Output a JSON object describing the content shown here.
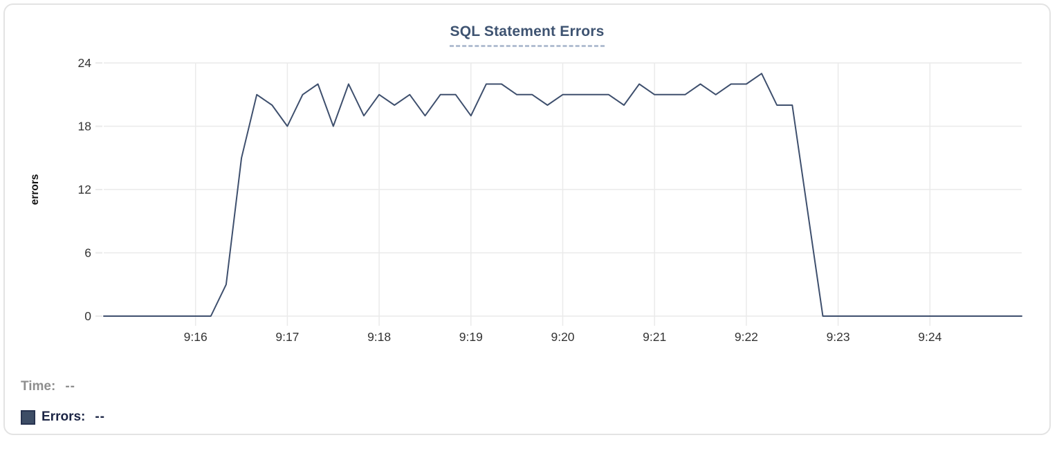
{
  "chart_data": {
    "type": "line",
    "title": "SQL Statement Errors",
    "xlabel": "",
    "ylabel": "errors",
    "x_tick_labels": [
      "9:16",
      "9:17",
      "9:18",
      "9:19",
      "9:20",
      "9:21",
      "9:22",
      "9:23",
      "9:24"
    ],
    "y_ticks": [
      0,
      6,
      12,
      18,
      24
    ],
    "ylim": [
      0,
      24
    ],
    "x_start": "9:15:00",
    "x_end": "9:25:00",
    "sample_interval_seconds": 10,
    "grid": true,
    "legend_position": "bottom-left",
    "series": [
      {
        "name": "Errors",
        "color": "#3e4f6d",
        "values": [
          0,
          0,
          0,
          0,
          0,
          0,
          0,
          0,
          3,
          15,
          21,
          20,
          18,
          21,
          22,
          18,
          22,
          19,
          21,
          20,
          21,
          19,
          21,
          21,
          19,
          22,
          22,
          21,
          21,
          20,
          21,
          21,
          21,
          21,
          20,
          22,
          21,
          21,
          21,
          22,
          21,
          22,
          22,
          23,
          20,
          20,
          10,
          0,
          0,
          0,
          0,
          0,
          0,
          0,
          0,
          0,
          0,
          0,
          0,
          0,
          0
        ]
      }
    ]
  },
  "tooltip_readout": {
    "time_label": "Time:",
    "time_value": "--",
    "errors_label": "Errors:",
    "errors_value": "--"
  },
  "colors": {
    "line": "#3e4f6d",
    "title": "#3e5371",
    "title_underline": "#b2bed1",
    "gridline": "#eaeaea",
    "tick_text": "#333333",
    "axis_label_text": "#111111",
    "time_readout": "#8e8e8e",
    "errors_readout": "#1c2545",
    "legend_swatch_fill": "#3d4d66",
    "legend_swatch_border": "#273350",
    "card_border": "#e3e3e3",
    "card_background": "#ffffff"
  }
}
